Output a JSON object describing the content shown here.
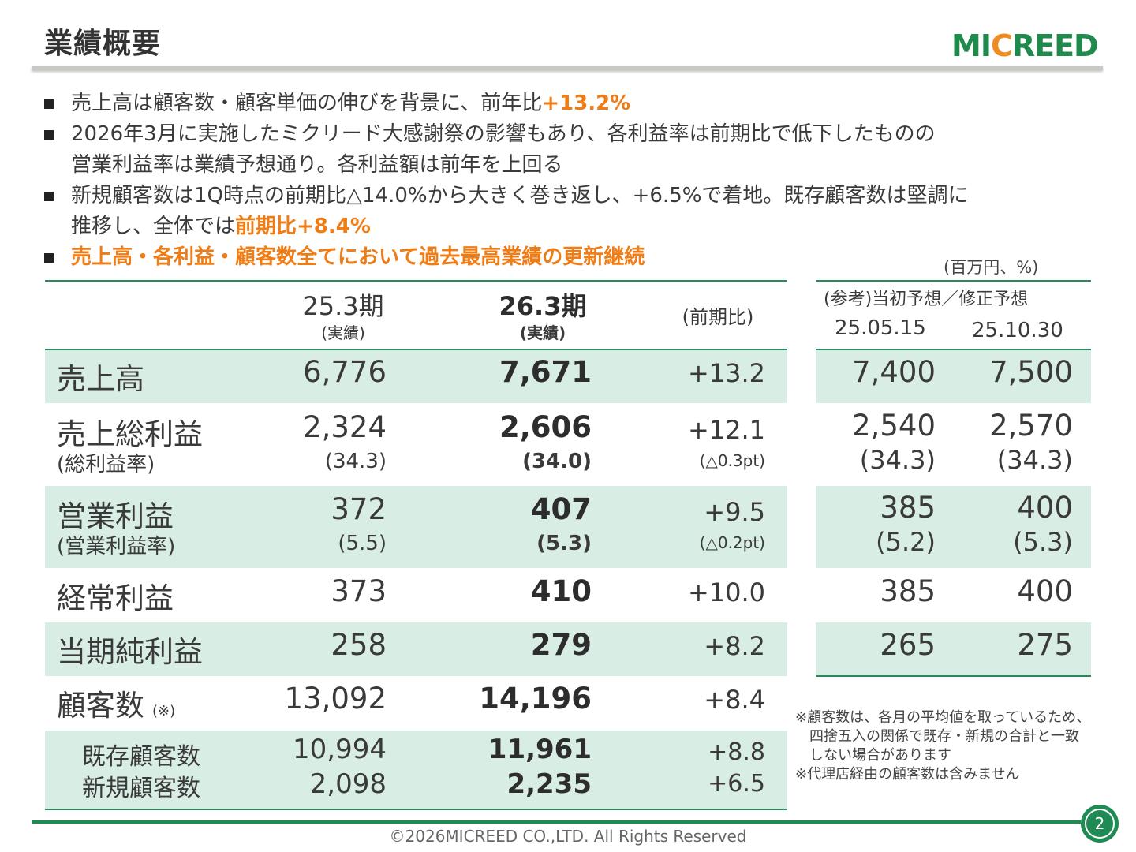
{
  "title": "業績概要",
  "logo": {
    "pre": "MI",
    "c": "C",
    "post": "REED"
  },
  "bullets": [
    {
      "text": "売上高は顧客数・顧客単価の伸びを背景に、前年比",
      "highlight": "+13.2%"
    },
    {
      "line1": "2026年3月に実施したミクリード大感謝祭の影響もあり、各利益率は前期比で低下したものの",
      "line2": "営業利益率は業績予想通り。各利益額は前年を上回る"
    },
    {
      "line1": "新規顧客数は1Q時点の前期比△14.0%から大きく巻き返し、+6.5%で着地。既存顧客数は堅調に",
      "line2_pre": "推移し、全体では",
      "line2_hl": "前期比+8.4%"
    },
    {
      "highlight": "売上高・各利益・顧客数全てにおいて過去最高業績の更新継続"
    }
  ],
  "unit": "(百万円、%)",
  "header": {
    "col1": "25.3期",
    "col1_sub": "(実績)",
    "col2": "26.3期",
    "col2_sub": "(実績)",
    "col3": "(前期比)",
    "ref": "(参考)当初予想／修正予想",
    "ref_d1": "25.05.15",
    "ref_d2": "25.10.30"
  },
  "rows": {
    "sales": {
      "label": "売上高",
      "v1": "6,776",
      "v2": "7,671",
      "yoy": "+13.2",
      "r1": "7,400",
      "r2": "7,500"
    },
    "gross": {
      "label": "売上総利益",
      "sub": "(総利益率)",
      "v1": "2,324",
      "v1s": "(34.3)",
      "v2": "2,606",
      "v2s": "(34.0)",
      "yoy": "+12.1",
      "yoys": "(△0.3pt)",
      "r1": "2,540",
      "r1s": "(34.3)",
      "r2": "2,570",
      "r2s": "(34.3)"
    },
    "op": {
      "label": "営業利益",
      "sub": "(営業利益率)",
      "v1": "372",
      "v1s": "(5.5)",
      "v2": "407",
      "v2s": "(5.3)",
      "yoy": "+9.5",
      "yoys": "(△0.2pt)",
      "r1": "385",
      "r1s": "(5.2)",
      "r2": "400",
      "r2s": "(5.3)"
    },
    "ord": {
      "label": "経常利益",
      "v1": "373",
      "v2": "410",
      "yoy": "+10.0",
      "r1": "385",
      "r2": "400"
    },
    "net": {
      "label": "当期純利益",
      "v1": "258",
      "v2": "279",
      "yoy": "+8.2",
      "r1": "265",
      "r2": "275"
    },
    "cust": {
      "label": "顧客数",
      "mark": "(※)",
      "v1": "13,092",
      "v2": "14,196",
      "yoy": "+8.4"
    },
    "existing": {
      "label": "既存顧客数",
      "v1": "10,994",
      "v2": "11,961",
      "yoy": "+8.8"
    },
    "new": {
      "label": "新規顧客数",
      "v1": "2,098",
      "v2": "2,235",
      "yoy": "+6.5"
    }
  },
  "notes": [
    "※顧客数は、各月の平均値を取っているため、",
    "四捨五入の関係で既存・新規の合計と一致",
    "しない場合があります",
    "※代理店経由の顧客数は含みません"
  ],
  "copyright": "©2026MICREED CO.,LTD. All Rights Reserved",
  "page": "2",
  "colors": {
    "green": "#1f8a54",
    "orange": "#f07c16",
    "rowfill": "#d8ede4"
  }
}
